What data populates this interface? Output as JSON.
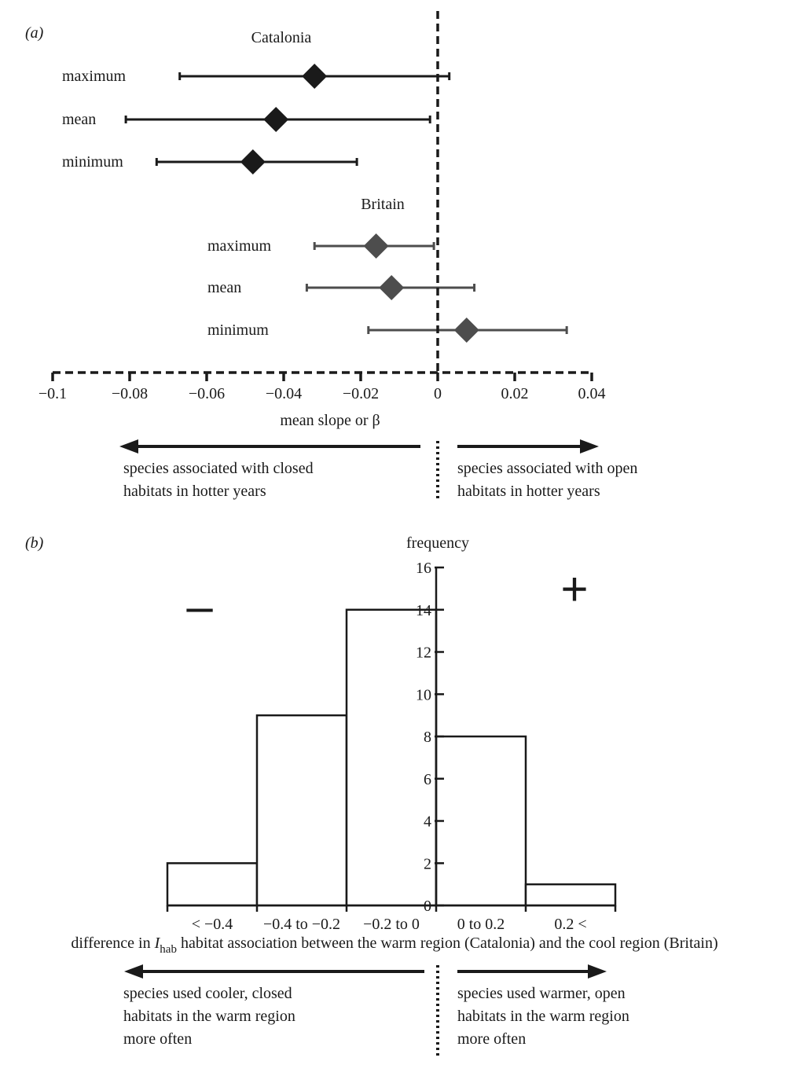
{
  "panels": {
    "a_label": "(a)",
    "b_label": "(b)"
  },
  "chart_data": [
    {
      "type": "scatter",
      "subtype": "forest-plot",
      "panel": "(a)",
      "xlabel": "mean slope or β",
      "xlim": [
        -0.1,
        0.04
      ],
      "xticks": [
        "−0.1",
        "−0.08",
        "−0.06",
        "−0.04",
        "−0.02",
        "0",
        "0.02",
        "0.04"
      ],
      "xtick_values": [
        -0.1,
        -0.08,
        -0.06,
        -0.04,
        -0.02,
        0,
        0.02,
        0.04
      ],
      "reference_line": 0,
      "groups": [
        {
          "name": "Catalonia",
          "color": "#1a1a1a",
          "rows": [
            {
              "label": "maximum",
              "value": -0.032,
              "low": -0.067,
              "high": 0.003
            },
            {
              "label": "mean",
              "value": -0.042,
              "low": -0.081,
              "high": -0.002
            },
            {
              "label": "minimum",
              "value": -0.048,
              "low": -0.073,
              "high": -0.021
            }
          ]
        },
        {
          "name": "Britain",
          "color": "#4d4d4d",
          "rows": [
            {
              "label": "maximum",
              "value": -0.016,
              "low": -0.032,
              "high": -0.001
            },
            {
              "label": "mean",
              "value": -0.012,
              "low": -0.034,
              "high": 0.0095
            },
            {
              "label": "minimum",
              "value": 0.0075,
              "low": -0.018,
              "high": 0.0335
            }
          ]
        }
      ],
      "annotations": {
        "left": [
          "species associated with closed",
          "habitats in hotter years"
        ],
        "right": [
          "species associated with open",
          "habitats in hotter years"
        ]
      }
    },
    {
      "type": "bar",
      "subtype": "histogram",
      "panel": "(b)",
      "ylabel": "frequency",
      "ylim": [
        0,
        16
      ],
      "yticks": [
        "0",
        "2",
        "4",
        "6",
        "8",
        "10",
        "12",
        "14",
        "16"
      ],
      "ytick_values": [
        0,
        2,
        4,
        6,
        8,
        10,
        12,
        14,
        16
      ],
      "categories": [
        "< −0.4",
        "−0.4 to −0.2",
        "−0.2 to 0",
        "0 to 0.2",
        "0.2 <"
      ],
      "values": [
        2,
        9,
        14,
        8,
        1
      ],
      "xlabel_pre": "difference in ",
      "xlabel_var": "I",
      "xlabel_sub": "hab",
      "xlabel_post": " habitat association between the warm region (Catalonia) and the cool region (Britain)",
      "sign_left": "–",
      "sign_right": "+",
      "annotations": {
        "left": [
          "species used cooler, closed",
          "habitats in the warm region",
          "more often"
        ],
        "right": [
          "species used warmer, open",
          "habitats in the warm region",
          "more often"
        ]
      }
    }
  ]
}
